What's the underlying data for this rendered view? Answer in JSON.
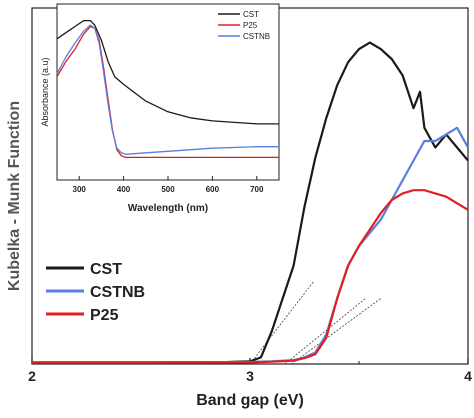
{
  "chart_data": [
    {
      "id": "main",
      "type": "line",
      "xlabel": "Band gap (eV)",
      "ylabel": "Kubelka - Munk Function",
      "xlim": [
        2,
        4
      ],
      "ylim": [
        0,
        1
      ],
      "xticks": [
        "2",
        "3",
        "4"
      ],
      "legend_position": "bottom-left",
      "grid": false,
      "series": [
        {
          "name": "CST",
          "color": "#1a1a1a",
          "x": [
            2.0,
            2.5,
            2.9,
            3.0,
            3.05,
            3.1,
            3.15,
            3.2,
            3.25,
            3.3,
            3.35,
            3.4,
            3.45,
            3.5,
            3.55,
            3.6,
            3.65,
            3.7,
            3.75,
            3.78,
            3.8,
            3.85,
            3.9,
            3.95,
            4.0
          ],
          "y": [
            0.005,
            0.005,
            0.006,
            0.008,
            0.02,
            0.1,
            0.2,
            0.3,
            0.48,
            0.63,
            0.75,
            0.85,
            0.92,
            0.96,
            0.98,
            0.96,
            0.93,
            0.88,
            0.78,
            0.83,
            0.72,
            0.66,
            0.7,
            0.66,
            0.62
          ]
        },
        {
          "name": "CSTNB",
          "color": "#5b7fe0",
          "x": [
            2.0,
            2.5,
            3.0,
            3.1,
            3.2,
            3.25,
            3.3,
            3.35,
            3.4,
            3.45,
            3.5,
            3.55,
            3.6,
            3.65,
            3.7,
            3.75,
            3.8,
            3.85,
            3.9,
            3.95,
            4.0
          ],
          "y": [
            0.005,
            0.005,
            0.006,
            0.008,
            0.012,
            0.02,
            0.035,
            0.09,
            0.2,
            0.3,
            0.36,
            0.4,
            0.44,
            0.5,
            0.56,
            0.62,
            0.68,
            0.68,
            0.7,
            0.72,
            0.66
          ]
        },
        {
          "name": "P25",
          "color": "#e02020",
          "x": [
            2.0,
            2.5,
            3.0,
            3.1,
            3.2,
            3.25,
            3.3,
            3.35,
            3.4,
            3.45,
            3.5,
            3.55,
            3.6,
            3.65,
            3.7,
            3.75,
            3.8,
            3.85,
            3.9,
            3.95,
            4.0
          ],
          "y": [
            0.004,
            0.004,
            0.005,
            0.007,
            0.01,
            0.018,
            0.03,
            0.08,
            0.2,
            0.3,
            0.36,
            0.41,
            0.46,
            0.5,
            0.52,
            0.53,
            0.53,
            0.52,
            0.51,
            0.49,
            0.47
          ]
        }
      ],
      "tangent_lines": [
        {
          "x": [
            3.0,
            3.29
          ],
          "y": [
            0.0,
            0.25
          ]
        },
        {
          "x": [
            3.16,
            3.53
          ],
          "y": [
            0.0,
            0.2
          ]
        },
        {
          "x": [
            3.19,
            3.6
          ],
          "y": [
            0.0,
            0.2
          ]
        }
      ]
    },
    {
      "id": "inset",
      "type": "line",
      "xlabel": "Wavelength (nm)",
      "ylabel": "Absorbance (a.u)",
      "xlim": [
        250,
        750
      ],
      "ylim": [
        0,
        1
      ],
      "xticks": [
        "300",
        "400",
        "500",
        "600",
        "700"
      ],
      "legend_position": "top-right",
      "grid": false,
      "series": [
        {
          "name": "CST",
          "color": "#1a1a1a",
          "x": [
            250,
            270,
            290,
            310,
            325,
            335,
            350,
            365,
            380,
            400,
            450,
            500,
            550,
            600,
            650,
            700,
            750
          ],
          "y": [
            0.85,
            0.89,
            0.93,
            0.97,
            0.97,
            0.94,
            0.84,
            0.7,
            0.6,
            0.55,
            0.44,
            0.37,
            0.33,
            0.31,
            0.3,
            0.29,
            0.29
          ]
        },
        {
          "name": "P25",
          "color": "#e02020",
          "x": [
            250,
            270,
            290,
            310,
            325,
            335,
            345,
            355,
            365,
            375,
            385,
            395,
            405,
            450,
            500,
            600,
            700,
            750
          ],
          "y": [
            0.6,
            0.7,
            0.78,
            0.88,
            0.93,
            0.92,
            0.84,
            0.66,
            0.45,
            0.25,
            0.12,
            0.08,
            0.07,
            0.07,
            0.07,
            0.07,
            0.07,
            0.07
          ]
        },
        {
          "name": "CSTNB",
          "color": "#5b7fe0",
          "x": [
            250,
            270,
            290,
            310,
            325,
            335,
            345,
            355,
            365,
            375,
            385,
            395,
            405,
            450,
            500,
            600,
            700,
            750
          ],
          "y": [
            0.62,
            0.73,
            0.82,
            0.9,
            0.94,
            0.92,
            0.82,
            0.63,
            0.42,
            0.24,
            0.13,
            0.1,
            0.09,
            0.1,
            0.11,
            0.13,
            0.14,
            0.14
          ]
        }
      ]
    }
  ]
}
